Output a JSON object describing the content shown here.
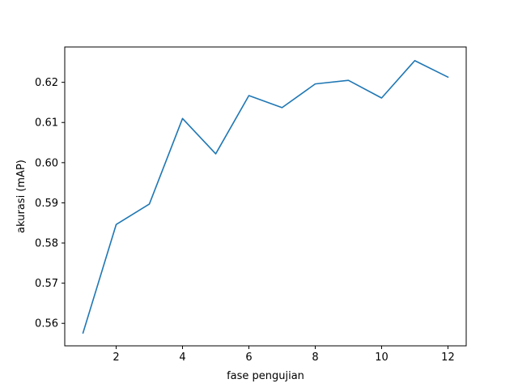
{
  "chart_data": {
    "type": "line",
    "title": "",
    "xlabel": "fase pengujian",
    "ylabel": "akurasi (mAP)",
    "xlim": [
      0.45,
      12.55
    ],
    "ylim": [
      0.5544,
      0.6288
    ],
    "xticks": [
      2,
      4,
      6,
      8,
      10,
      12
    ],
    "xtick_labels": [
      "2",
      "4",
      "6",
      "8",
      "10",
      "12"
    ],
    "yticks": [
      0.56,
      0.57,
      0.58,
      0.59,
      0.6,
      0.61,
      0.62
    ],
    "ytick_labels": [
      "0.56",
      "0.57",
      "0.58",
      "0.59",
      "0.60",
      "0.61",
      "0.62"
    ],
    "grid": false,
    "series": [
      {
        "color": "#1f77b4",
        "x": [
          1,
          2,
          3,
          4,
          5,
          6,
          7,
          8,
          9,
          10,
          11,
          12
        ],
        "y": [
          0.5576,
          0.5846,
          0.5897,
          0.611,
          0.6022,
          0.6167,
          0.6137,
          0.6196,
          0.6205,
          0.6161,
          0.6254,
          0.6213
        ]
      }
    ]
  }
}
